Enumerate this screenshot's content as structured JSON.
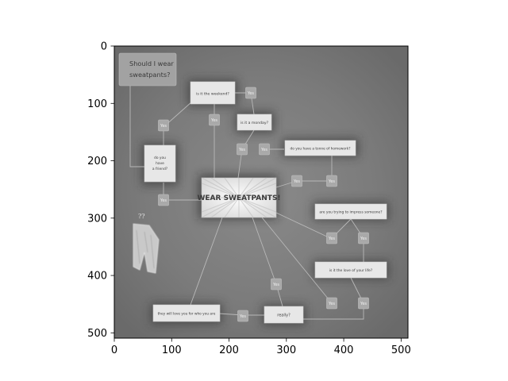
{
  "axes": {
    "x_ticks": [
      "0",
      "100",
      "200",
      "300",
      "400",
      "500"
    ],
    "y_ticks": [
      "0",
      "100",
      "200",
      "300",
      "400",
      "500"
    ]
  },
  "image": {
    "description_labels": {
      "title_box": "Should I wear sweatpants?",
      "center_box": "WEAR SWEATPANTS!",
      "q_weekend": "is it the weekend?",
      "q_monday": "is it a monday?",
      "q_homework": "do you have a tonne of homework?",
      "q_friend": "do you have a friend?",
      "q_impress": "are you trying to impress someone?",
      "q_love": "is it the love of your life?",
      "q_like": "they will love you for who you are",
      "q_really": "really?",
      "yes_label": "Yes",
      "question_marks": "??"
    }
  }
}
